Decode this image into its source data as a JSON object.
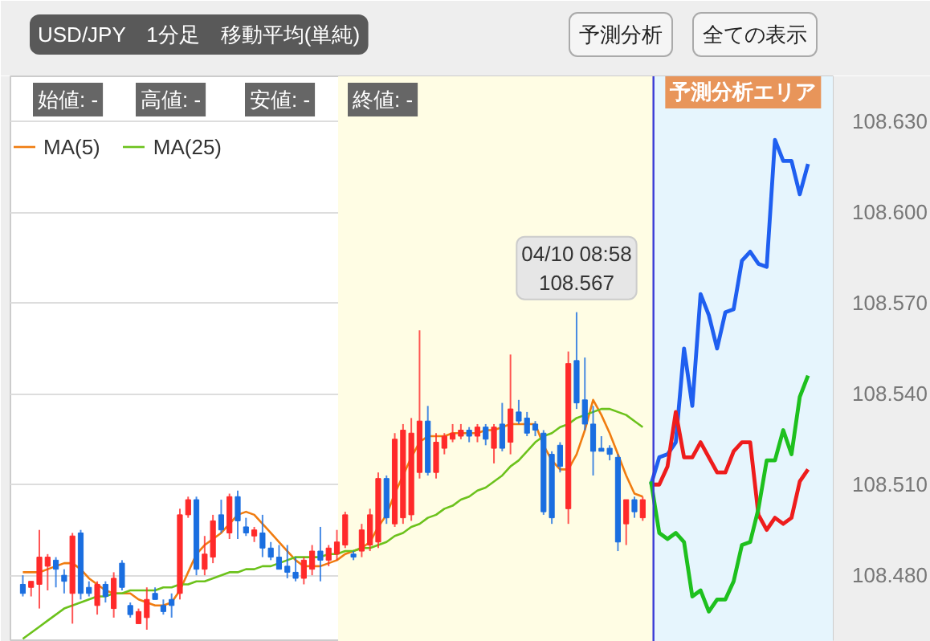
{
  "chart_data": {
    "type": "candlestick",
    "title": "USD/JPY　1分足　移動平均(単純)",
    "categories": [
      null,
      null,
      null,
      null,
      null,
      null,
      null,
      null,
      null,
      null,
      null,
      null,
      null,
      null,
      null,
      null,
      null,
      null,
      null,
      null,
      null,
      null,
      null,
      null,
      null,
      null,
      null,
      null,
      null,
      null,
      null,
      null,
      null,
      null,
      null,
      null,
      null,
      null,
      null,
      null,
      null,
      null,
      null,
      null,
      null,
      null,
      null,
      null,
      null,
      null,
      null,
      null,
      null,
      null,
      null,
      null,
      null,
      null,
      null,
      null,
      null,
      null,
      null,
      null,
      null,
      null,
      null,
      null,
      null,
      null,
      null,
      null,
      null,
      null,
      null,
      null,
      null,
      null,
      null,
      null,
      null,
      null,
      null,
      null,
      null,
      null,
      null,
      null,
      null,
      null,
      null,
      null,
      null,
      null,
      null,
      null
    ],
    "ohlc": [
      [
        108.477,
        108.48,
        108.473,
        108.474
      ],
      [
        108.476,
        108.478,
        108.473,
        108.478
      ],
      [
        108.477,
        108.495,
        108.469,
        108.486
      ],
      [
        108.483,
        108.487,
        108.475,
        108.486
      ],
      [
        108.485,
        108.486,
        108.476,
        108.482
      ],
      [
        108.48,
        108.482,
        108.474,
        108.478
      ],
      [
        108.474,
        108.494,
        108.464,
        108.493
      ],
      [
        108.494,
        108.495,
        108.472,
        108.474
      ],
      [
        108.476,
        108.478,
        108.473,
        108.474
      ],
      [
        108.47,
        108.478,
        108.467,
        108.477
      ],
      [
        108.477,
        108.478,
        108.471,
        108.473
      ],
      [
        108.469,
        108.481,
        108.466,
        108.479
      ],
      [
        108.484,
        108.485,
        108.475,
        108.476
      ],
      [
        108.47,
        108.471,
        108.466,
        108.467
      ],
      [
        108.464,
        108.469,
        108.464,
        108.468
      ],
      [
        108.466,
        108.476,
        108.462,
        108.472
      ],
      [
        108.474,
        108.476,
        108.472,
        108.472
      ],
      [
        108.47,
        108.472,
        108.467,
        108.468
      ],
      [
        108.472,
        108.474,
        108.466,
        108.47
      ],
      [
        108.474,
        108.502,
        108.472,
        108.5
      ],
      [
        108.5,
        108.506,
        108.499,
        108.505
      ],
      [
        108.505,
        108.506,
        108.48,
        108.482
      ],
      [
        108.482,
        108.493,
        108.48,
        108.487
      ],
      [
        108.486,
        108.5,
        108.484,
        108.498
      ],
      [
        108.5,
        108.505,
        108.494,
        108.495
      ],
      [
        108.494,
        108.507,
        108.492,
        108.506
      ],
      [
        108.506,
        108.508,
        108.492,
        108.498
      ],
      [
        108.496,
        108.499,
        108.493,
        108.494
      ],
      [
        108.493,
        108.496,
        108.491,
        108.495
      ],
      [
        108.494,
        108.5,
        108.486,
        108.489
      ],
      [
        108.489,
        108.491,
        108.485,
        108.486
      ],
      [
        108.486,
        108.49,
        108.482,
        108.482
      ],
      [
        108.483,
        108.49,
        108.479,
        108.481
      ],
      [
        108.481,
        108.486,
        108.478,
        108.479
      ],
      [
        108.479,
        108.486,
        108.477,
        108.485
      ],
      [
        108.482,
        108.49,
        108.48,
        108.488
      ],
      [
        108.488,
        108.496,
        108.478,
        108.485
      ],
      [
        108.485,
        108.49,
        108.483,
        108.489
      ],
      [
        108.487,
        108.495,
        108.485,
        108.491
      ],
      [
        108.49,
        108.501,
        108.489,
        108.5
      ],
      [
        108.487,
        108.488,
        108.485,
        108.486
      ],
      [
        108.488,
        108.497,
        108.486,
        108.495
      ],
      [
        108.49,
        108.502,
        108.488,
        108.5
      ],
      [
        108.491,
        108.514,
        108.489,
        108.512
      ],
      [
        108.512,
        108.513,
        108.497,
        108.499
      ],
      [
        108.497,
        108.527,
        108.496,
        108.525
      ],
      [
        108.499,
        108.53,
        108.497,
        108.528
      ],
      [
        108.5,
        108.532,
        108.498,
        108.527
      ],
      [
        108.514,
        108.561,
        108.512,
        108.531
      ],
      [
        108.531,
        108.536,
        108.513,
        108.514
      ],
      [
        108.514,
        108.527,
        108.512,
        108.524
      ],
      [
        108.522,
        108.527,
        108.52,
        108.526
      ],
      [
        108.525,
        108.53,
        108.524,
        108.527
      ],
      [
        108.526,
        108.53,
        108.525,
        108.528
      ],
      [
        108.528,
        108.529,
        108.524,
        108.526
      ],
      [
        108.526,
        108.53,
        108.524,
        108.529
      ],
      [
        108.529,
        108.53,
        108.523,
        108.525
      ],
      [
        108.522,
        108.53,
        108.517,
        108.529
      ],
      [
        108.53,
        108.537,
        108.521,
        108.522
      ],
      [
        108.524,
        108.553,
        108.52,
        108.535
      ],
      [
        108.534,
        108.538,
        108.53,
        108.531
      ],
      [
        108.532,
        108.534,
        108.526,
        108.527
      ],
      [
        108.53,
        108.531,
        108.526,
        108.528
      ],
      [
        108.527,
        108.528,
        108.5,
        108.501
      ],
      [
        108.52,
        108.521,
        108.497,
        108.499
      ],
      [
        108.523,
        108.524,
        108.514,
        108.516
      ],
      [
        108.502,
        108.554,
        108.497,
        108.55
      ],
      [
        108.551,
        108.567,
        108.535,
        108.537
      ],
      [
        108.538,
        108.552,
        108.528,
        108.53
      ],
      [
        108.53,
        108.536,
        108.513,
        108.521
      ],
      [
        108.522,
        108.526,
        108.521,
        108.521
      ],
      [
        108.522,
        108.523,
        108.518,
        108.52
      ],
      [
        108.519,
        108.52,
        108.488,
        108.491
      ],
      [
        108.497,
        108.505,
        108.49,
        108.505
      ],
      [
        108.505,
        108.506,
        108.499,
        108.501
      ],
      [
        108.499,
        108.506,
        108.498,
        108.505
      ],
      null,
      null,
      null,
      null,
      null,
      null,
      null,
      null,
      null,
      null,
      null,
      null,
      null,
      null,
      null,
      null,
      null,
      null,
      null,
      null
    ],
    "colors": [
      "#1a6ee0",
      "#ff2a2a",
      "#ff2a2a",
      "#ff2a2a",
      "#1a6ee0",
      "#1a6ee0",
      "#ff2a2a",
      "#1a6ee0",
      "#1a6ee0",
      "#ff2a2a",
      "#1a6ee0",
      "#ff2a2a",
      "#1a6ee0",
      "#1a6ee0",
      "#ff2a2a",
      "#ff2a2a",
      "#1a6ee0",
      "#1a6ee0",
      "#1a6ee0",
      "#ff2a2a",
      "#ff2a2a",
      "#1a6ee0",
      "#ff2a2a",
      "#ff2a2a",
      "#1a6ee0",
      "#ff2a2a",
      "#1a6ee0",
      "#1a6ee0",
      "#ff2a2a",
      "#1a6ee0",
      "#1a6ee0",
      "#1a6ee0",
      "#1a6ee0",
      "#1a6ee0",
      "#ff2a2a",
      "#ff2a2a",
      "#1a6ee0",
      "#ff2a2a",
      "#ff2a2a",
      "#ff2a2a",
      "#1a6ee0",
      "#ff2a2a",
      "#ff2a2a",
      "#ff2a2a",
      "#1a6ee0",
      "#ff2a2a",
      "#ff2a2a",
      "#ff2a2a",
      "#ff2a2a",
      "#1a6ee0",
      "#ff2a2a",
      "#ff2a2a",
      "#ff2a2a",
      "#ff2a2a",
      "#1a6ee0",
      "#ff2a2a",
      "#1a6ee0",
      "#ff2a2a",
      "#1a6ee0",
      "#ff2a2a",
      "#1a6ee0",
      "#1a6ee0",
      "#1a6ee0",
      "#1a6ee0",
      "#1a6ee0",
      "#1a6ee0",
      "#ff2a2a",
      "#1a6ee0",
      "#1a6ee0",
      "#1a6ee0",
      "#1a6ee0",
      "#1a6ee0",
      "#1a6ee0",
      "#ff2a2a",
      "#1a6ee0",
      "#ff2a2a",
      null,
      null,
      null,
      null,
      null,
      null,
      null,
      null,
      null,
      null,
      null,
      null,
      null,
      null,
      null,
      null,
      null,
      null,
      null,
      null
    ],
    "series": [
      {
        "name": "MA(5)",
        "color": "#f07c10",
        "type": "line",
        "values": [
          108.481,
          108.481,
          108.481,
          108.482,
          108.483,
          108.484,
          108.484,
          108.482,
          108.479,
          108.477,
          108.475,
          108.474,
          108.474,
          108.474,
          108.472,
          108.471,
          108.47,
          108.47,
          108.471,
          108.475,
          108.481,
          108.487,
          108.49,
          108.492,
          108.494,
          108.497,
          108.5,
          108.501,
          108.5,
          108.497,
          108.494,
          108.491,
          108.488,
          108.485,
          108.483,
          108.483,
          108.483,
          108.484,
          108.485,
          108.487,
          108.488,
          108.489,
          108.491,
          108.496,
          108.5,
          108.507,
          108.513,
          108.519,
          108.524,
          108.526,
          108.526,
          108.526,
          108.527,
          108.527,
          108.527,
          108.527,
          108.528,
          108.528,
          108.529,
          108.53,
          108.53,
          108.53,
          108.53,
          108.523,
          108.518,
          108.515,
          108.515,
          108.52,
          108.528,
          108.538,
          108.533,
          108.527,
          108.52,
          108.513,
          108.507,
          108.506,
          null,
          null,
          null,
          null,
          null,
          null,
          null,
          null,
          null,
          null,
          null,
          null,
          null,
          null,
          null,
          null,
          null,
          null,
          null,
          null
        ]
      },
      {
        "name": "MA(25)",
        "color": "#6cc21c",
        "type": "line",
        "values": [
          108.459,
          108.461,
          108.463,
          108.465,
          108.467,
          108.469,
          108.47,
          108.471,
          108.472,
          108.473,
          108.473,
          108.474,
          108.474,
          108.475,
          108.475,
          108.475,
          108.475,
          108.476,
          108.476,
          108.477,
          108.477,
          108.478,
          108.478,
          108.479,
          108.48,
          108.481,
          108.481,
          108.482,
          108.482,
          108.483,
          108.483,
          108.484,
          108.485,
          108.486,
          108.486,
          108.486,
          108.486,
          108.487,
          108.487,
          108.488,
          108.488,
          108.489,
          108.489,
          108.49,
          108.491,
          108.493,
          108.494,
          108.496,
          108.497,
          108.499,
          108.5,
          108.502,
          108.503,
          108.505,
          108.506,
          108.508,
          108.509,
          108.511,
          108.513,
          108.516,
          108.518,
          108.521,
          108.524,
          108.526,
          108.527,
          108.529,
          108.53,
          108.532,
          108.533,
          108.534,
          108.535,
          108.535,
          108.534,
          108.533,
          108.531,
          108.529,
          null,
          null,
          null,
          null,
          null,
          null,
          null,
          null,
          null,
          null,
          null,
          null,
          null,
          null,
          null,
          null,
          null,
          null,
          null,
          null
        ]
      },
      {
        "color": "#1f5ff0",
        "type": "line",
        "values": [
          null,
          null,
          null,
          null,
          null,
          null,
          null,
          null,
          null,
          null,
          null,
          null,
          null,
          null,
          null,
          null,
          null,
          null,
          null,
          null,
          null,
          null,
          null,
          null,
          null,
          null,
          null,
          null,
          null,
          null,
          null,
          null,
          null,
          null,
          null,
          null,
          null,
          null,
          null,
          null,
          null,
          null,
          null,
          null,
          null,
          null,
          null,
          null,
          null,
          null,
          null,
          null,
          null,
          null,
          null,
          null,
          null,
          null,
          null,
          null,
          null,
          null,
          null,
          null,
          null,
          null,
          null,
          null,
          null,
          null,
          null,
          null,
          null,
          null,
          null,
          null,
          108.51,
          108.519,
          108.52,
          108.524,
          108.555,
          108.536,
          108.573,
          108.566,
          108.555,
          108.567,
          108.568,
          108.584,
          108.587,
          108.583,
          108.582,
          108.624,
          108.617,
          108.617,
          108.606,
          108.616
        ]
      },
      {
        "color": "#ee1c1c",
        "type": "line",
        "values": [
          null,
          null,
          null,
          null,
          null,
          null,
          null,
          null,
          null,
          null,
          null,
          null,
          null,
          null,
          null,
          null,
          null,
          null,
          null,
          null,
          null,
          null,
          null,
          null,
          null,
          null,
          null,
          null,
          null,
          null,
          null,
          null,
          null,
          null,
          null,
          null,
          null,
          null,
          null,
          null,
          null,
          null,
          null,
          null,
          null,
          null,
          null,
          null,
          null,
          null,
          null,
          null,
          null,
          null,
          null,
          null,
          null,
          null,
          null,
          null,
          null,
          null,
          null,
          null,
          null,
          null,
          null,
          null,
          null,
          null,
          null,
          null,
          null,
          null,
          null,
          null,
          108.51,
          108.51,
          108.516,
          108.534,
          108.519,
          108.519,
          108.524,
          108.519,
          108.514,
          108.514,
          108.521,
          108.524,
          108.524,
          108.5,
          108.495,
          108.499,
          108.497,
          108.499,
          108.511,
          108.515
        ]
      },
      {
        "color": "#1ec01e",
        "type": "line",
        "values": [
          null,
          null,
          null,
          null,
          null,
          null,
          null,
          null,
          null,
          null,
          null,
          null,
          null,
          null,
          null,
          null,
          null,
          null,
          null,
          null,
          null,
          null,
          null,
          null,
          null,
          null,
          null,
          null,
          null,
          null,
          null,
          null,
          null,
          null,
          null,
          null,
          null,
          null,
          null,
          null,
          null,
          null,
          null,
          null,
          null,
          null,
          null,
          null,
          null,
          null,
          null,
          null,
          null,
          null,
          null,
          null,
          null,
          null,
          null,
          null,
          null,
          null,
          null,
          null,
          null,
          null,
          null,
          null,
          null,
          null,
          null,
          null,
          null,
          null,
          null,
          null,
          108.511,
          108.494,
          108.492,
          108.494,
          108.491,
          108.473,
          108.475,
          108.468,
          108.472,
          108.472,
          108.478,
          108.49,
          108.491,
          108.502,
          108.518,
          108.518,
          108.528,
          108.52,
          108.539,
          108.546
        ]
      }
    ],
    "ylim": [
      108.458,
      108.645
    ],
    "yticks": [
      {
        "value": 108.48,
        "label": "108.480"
      },
      {
        "value": 108.51,
        "label": "108.510"
      },
      {
        "value": 108.54,
        "label": "108.540"
      },
      {
        "value": 108.57,
        "label": "108.570"
      },
      {
        "value": 108.6,
        "label": "108.600"
      },
      {
        "value": 108.63,
        "label": "108.630"
      }
    ],
    "tick_labels": "y",
    "grid": "y",
    "legend": "top left",
    "line_style": "solid",
    "annotations": [
      "予測分析",
      "全ての表示",
      "始値: -",
      "高値: -",
      "安値: -",
      "終値: -",
      "予測分析エリア",
      {
        "text": "04/10 08:58\n108.567",
        "y": 108.567
      }
    ]
  }
}
